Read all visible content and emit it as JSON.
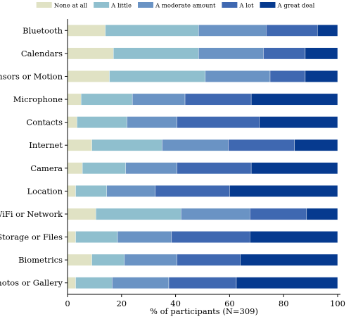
{
  "chart_data": {
    "type": "bar",
    "orientation": "horizontal",
    "stacked": true,
    "title": "",
    "xlabel": "% of participants (N=309)",
    "ylabel": "",
    "xlim": [
      0,
      100
    ],
    "xticks": [
      0,
      20,
      40,
      60,
      80,
      100
    ],
    "grid": false,
    "legend_position": "top",
    "categories": [
      "Bluetooth",
      "Calendars",
      "Sensors or Motion",
      "Microphone",
      "Contacts",
      "Internet",
      "Camera",
      "Location",
      "WiFi or Network",
      "Storage or Files",
      "Biometrics",
      "Photos or Gallery"
    ],
    "series": [
      {
        "name": "None at all",
        "color": "#e0e2c4",
        "values": [
          14.0,
          17.0,
          15.5,
          5.0,
          3.5,
          9.0,
          5.5,
          3.0,
          10.5,
          3.0,
          9.0,
          3.0
        ]
      },
      {
        "name": "A little",
        "color": "#8fbfce",
        "values": [
          34.5,
          31.5,
          35.5,
          19.0,
          18.5,
          26.0,
          16.0,
          11.5,
          31.5,
          15.5,
          12.0,
          13.5
        ]
      },
      {
        "name": "A moderate amount",
        "color": "#6a93c4",
        "values": [
          25.0,
          24.0,
          24.0,
          19.5,
          18.5,
          24.5,
          19.0,
          18.0,
          25.5,
          20.0,
          19.5,
          21.0
        ]
      },
      {
        "name": "A lot",
        "color": "#3f68b1",
        "values": [
          19.0,
          15.5,
          13.0,
          24.5,
          30.5,
          24.5,
          27.5,
          27.5,
          21.0,
          29.0,
          23.5,
          25.0
        ]
      },
      {
        "name": "A great deal",
        "color": "#063a8f",
        "values": [
          7.5,
          12.0,
          12.0,
          32.0,
          29.0,
          16.0,
          32.0,
          40.0,
          11.5,
          32.5,
          36.0,
          37.5
        ]
      }
    ]
  }
}
